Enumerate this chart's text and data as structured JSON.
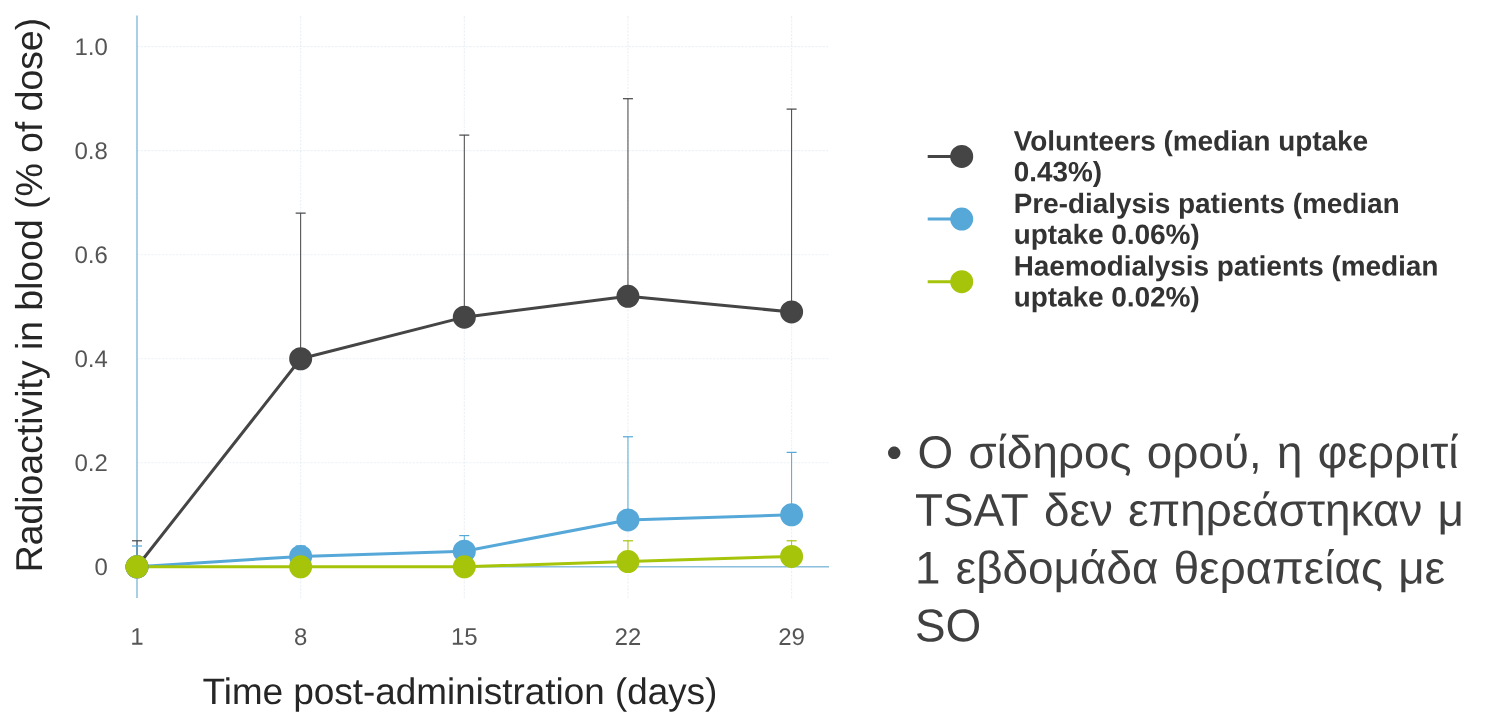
{
  "chart_data": {
    "type": "line",
    "xlabel": "Time post-administration (days)",
    "ylabel": "Radioactivity in blood (% of dose)",
    "x": [
      1,
      8,
      15,
      22,
      29
    ],
    "xlim": [
      1,
      30.6
    ],
    "xticks": [
      1,
      8,
      15,
      22,
      29
    ],
    "ylim": [
      -0.06,
      1.06
    ],
    "yticks": [
      0,
      0.2,
      0.4,
      0.6,
      0.8,
      {
        "value": 1,
        "label": "1.0"
      }
    ],
    "series": [
      {
        "name": "Volunteers (median uptake 0.43%)",
        "color": "#454545",
        "values": [
          0,
          0.4,
          0.48,
          0.52,
          0.49
        ],
        "errors": [
          [
            0,
            0.05
          ],
          [
            0.4,
            0.68
          ],
          [
            0.48,
            0.83
          ],
          [
            0.52,
            0.9
          ],
          [
            0.49,
            0.88
          ]
        ]
      },
      {
        "name": "Pre-dialysis patients (median uptake 0.06%)",
        "color": "#56a8d8",
        "values": [
          0,
          0.02,
          0.03,
          0.09,
          0.1
        ],
        "errors": [
          [
            0,
            0.04
          ],
          [
            0.02,
            0.04
          ],
          [
            0.03,
            0.06
          ],
          [
            0.09,
            0.25
          ],
          [
            0.1,
            0.22
          ]
        ]
      },
      {
        "name": "Haemodialysis patients (median uptake 0.02%)",
        "color": "#a6c40a",
        "values": [
          0,
          0,
          0,
          0.01,
          0.02
        ],
        "errors": [
          null,
          null,
          null,
          [
            0.01,
            0.05
          ],
          [
            0.02,
            0.05
          ]
        ]
      }
    ],
    "grid": true,
    "legend": "right",
    "marker": "circle",
    "annotations": [
      "• Ο σίδηρος ορού, η φερριτί TSAT δεν επηρεάστηκαν μ 1 εβδομάδα θεραπείας με SO"
    ]
  }
}
